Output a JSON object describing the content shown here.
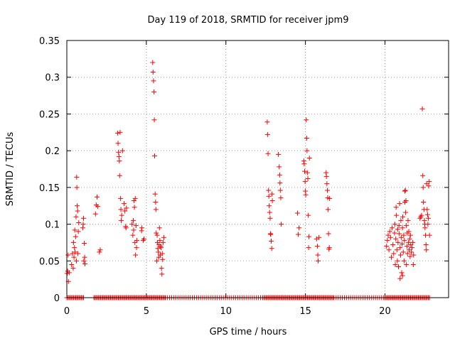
{
  "colors": {
    "series": "#ff0000"
  },
  "chart_data": {
    "type": "scatter",
    "title": "Day 119 of 2018, SRMTID for receiver jpm9",
    "xlabel": "GPS time / hours",
    "ylabel": "SRMTID / TECUs",
    "xlim": [
      0,
      24
    ],
    "ylim": [
      0,
      0.35
    ],
    "xticks": [
      0,
      5,
      10,
      15,
      20
    ],
    "xtick_labels": [
      "0",
      "5",
      "10",
      "15",
      "20"
    ],
    "yticks": [
      0,
      0.05,
      0.1,
      0.15,
      0.2,
      0.25,
      0.3,
      0.35
    ],
    "ytick_labels": [
      "0",
      "0.05",
      "0.1",
      "0.15",
      "0.2",
      "0.25",
      "0.3",
      "0.35"
    ],
    "grid": true,
    "marker": "+",
    "series": [
      {
        "name": "SRMTID",
        "points": [
          [
            0.02,
            0.033
          ],
          [
            0.05,
            0.036
          ],
          [
            0.08,
            0.058
          ],
          [
            0.1,
            0.022
          ],
          [
            0.15,
            0.034
          ],
          [
            0.3,
            0.045
          ],
          [
            0.35,
            0.06
          ],
          [
            0.4,
            0.04
          ],
          [
            0.42,
            0.075
          ],
          [
            0.45,
            0.055
          ],
          [
            0.48,
            0.068
          ],
          [
            0.5,
            0.092
          ],
          [
            0.52,
            0.062
          ],
          [
            0.55,
            0.083
          ],
          [
            0.58,
            0.11
          ],
          [
            0.6,
            0.05
          ],
          [
            0.62,
            0.164
          ],
          [
            0.63,
            0.15
          ],
          [
            0.65,
            0.125
          ],
          [
            0.68,
            0.118
          ],
          [
            0.7,
            0.06
          ],
          [
            0.72,
            0.09
          ],
          [
            0.75,
            0.102
          ],
          [
            1.0,
            0.095
          ],
          [
            1.03,
            0.1
          ],
          [
            1.05,
            0.108
          ],
          [
            1.07,
            0.05
          ],
          [
            1.1,
            0.074
          ],
          [
            1.12,
            0.055
          ],
          [
            1.14,
            0.046
          ],
          [
            1.8,
            0.114
          ],
          [
            1.85,
            0.126
          ],
          [
            1.9,
            0.137
          ],
          [
            1.95,
            0.124
          ],
          [
            2.05,
            0.062
          ],
          [
            2.1,
            0.065
          ],
          [
            3.2,
            0.224
          ],
          [
            3.22,
            0.21
          ],
          [
            3.25,
            0.198
          ],
          [
            3.28,
            0.192
          ],
          [
            3.3,
            0.186
          ],
          [
            3.32,
            0.166
          ],
          [
            3.35,
            0.225
          ],
          [
            3.38,
            0.135
          ],
          [
            3.4,
            0.12
          ],
          [
            3.42,
            0.105
          ],
          [
            3.45,
            0.112
          ],
          [
            3.5,
            0.2
          ],
          [
            3.6,
            0.128
          ],
          [
            3.65,
            0.118
          ],
          [
            3.7,
            0.097
          ],
          [
            3.72,
            0.095
          ],
          [
            3.75,
            0.122
          ],
          [
            4.1,
            0.1
          ],
          [
            4.15,
            0.085
          ],
          [
            4.18,
            0.105
          ],
          [
            4.2,
            0.092
          ],
          [
            4.22,
            0.132
          ],
          [
            4.25,
            0.123
          ],
          [
            4.28,
            0.075
          ],
          [
            4.3,
            0.135
          ],
          [
            4.32,
            0.058
          ],
          [
            4.35,
            0.098
          ],
          [
            4.38,
            0.068
          ],
          [
            4.4,
            0.078
          ],
          [
            4.7,
            0.091
          ],
          [
            4.72,
            0.095
          ],
          [
            4.8,
            0.078
          ],
          [
            4.85,
            0.08
          ],
          [
            5.4,
            0.32
          ],
          [
            5.42,
            0.307
          ],
          [
            5.45,
            0.295
          ],
          [
            5.48,
            0.28
          ],
          [
            5.5,
            0.242
          ],
          [
            5.52,
            0.193
          ],
          [
            5.55,
            0.141
          ],
          [
            5.58,
            0.13
          ],
          [
            5.6,
            0.12
          ],
          [
            5.62,
            0.088
          ],
          [
            5.65,
            0.05
          ],
          [
            5.68,
            0.085
          ],
          [
            5.7,
            0.075
          ],
          [
            5.72,
            0.067
          ],
          [
            5.75,
            0.062
          ],
          [
            5.78,
            0.055
          ],
          [
            5.8,
            0.072
          ],
          [
            5.82,
            0.095
          ],
          [
            5.85,
            0.078
          ],
          [
            5.88,
            0.058
          ],
          [
            5.9,
            0.07
          ],
          [
            5.92,
            0.068
          ],
          [
            5.95,
            0.04
          ],
          [
            5.98,
            0.032
          ],
          [
            6.0,
            0.06
          ],
          [
            6.02,
            0.052
          ],
          [
            6.05,
            0.075
          ],
          [
            6.1,
            0.082
          ],
          [
            12.6,
            0.239
          ],
          [
            12.62,
            0.222
          ],
          [
            12.65,
            0.196
          ],
          [
            12.68,
            0.146
          ],
          [
            12.7,
            0.138
          ],
          [
            12.72,
            0.125
          ],
          [
            12.75,
            0.116
          ],
          [
            12.78,
            0.108
          ],
          [
            12.8,
            0.087
          ],
          [
            12.82,
            0.086
          ],
          [
            12.85,
            0.077
          ],
          [
            12.88,
            0.067
          ],
          [
            12.9,
            0.141
          ],
          [
            12.92,
            0.132
          ],
          [
            13.3,
            0.195
          ],
          [
            13.35,
            0.178
          ],
          [
            13.38,
            0.167
          ],
          [
            13.4,
            0.156
          ],
          [
            13.42,
            0.146
          ],
          [
            13.45,
            0.136
          ],
          [
            13.48,
            0.1
          ],
          [
            14.5,
            0.115
          ],
          [
            14.55,
            0.086
          ],
          [
            14.6,
            0.095
          ],
          [
            14.9,
            0.186
          ],
          [
            14.92,
            0.182
          ],
          [
            14.95,
            0.172
          ],
          [
            14.98,
            0.158
          ],
          [
            15.0,
            0.145
          ],
          [
            15.02,
            0.14
          ],
          [
            15.05,
            0.242
          ],
          [
            15.08,
            0.217
          ],
          [
            15.1,
            0.2
          ],
          [
            15.12,
            0.17
          ],
          [
            15.15,
            0.162
          ],
          [
            15.18,
            0.112
          ],
          [
            15.2,
            0.068
          ],
          [
            15.22,
            0.083
          ],
          [
            15.25,
            0.19
          ],
          [
            15.7,
            0.08
          ],
          [
            15.75,
            0.07
          ],
          [
            15.78,
            0.058
          ],
          [
            15.8,
            0.05
          ],
          [
            15.85,
            0.082
          ],
          [
            16.3,
            0.17
          ],
          [
            16.32,
            0.165
          ],
          [
            16.35,
            0.155
          ],
          [
            16.38,
            0.146
          ],
          [
            16.4,
            0.136
          ],
          [
            16.42,
            0.12
          ],
          [
            16.45,
            0.087
          ],
          [
            16.48,
            0.066
          ],
          [
            16.5,
            0.068
          ],
          [
            16.52,
            0.135
          ],
          [
            20.1,
            0.07
          ],
          [
            20.15,
            0.078
          ],
          [
            20.2,
            0.085
          ],
          [
            20.25,
            0.065
          ],
          [
            20.3,
            0.09
          ],
          [
            20.35,
            0.082
          ],
          [
            20.4,
            0.055
          ],
          [
            20.45,
            0.095
          ],
          [
            20.5,
            0.072
          ],
          [
            20.55,
            0.06
          ],
          [
            20.6,
            0.088
          ],
          [
            20.62,
            0.1
          ],
          [
            20.65,
            0.045
          ],
          [
            20.68,
            0.08
          ],
          [
            20.7,
            0.123
          ],
          [
            20.72,
            0.112
          ],
          [
            20.75,
            0.065
          ],
          [
            20.78,
            0.05
          ],
          [
            20.8,
            0.093
          ],
          [
            20.82,
            0.075
          ],
          [
            20.85,
            0.042
          ],
          [
            20.88,
            0.098
          ],
          [
            20.9,
            0.087
          ],
          [
            20.92,
            0.128
          ],
          [
            20.95,
            0.068
          ],
          [
            20.98,
            0.058
          ],
          [
            21.0,
            0.105
          ],
          [
            21.02,
            0.082
          ],
          [
            21.05,
            0.034
          ],
          [
            21.08,
            0.073
          ],
          [
            21.1,
            0.095
          ],
          [
            21.12,
            0.11
          ],
          [
            21.15,
            0.062
          ],
          [
            21.18,
            0.085
          ],
          [
            21.2,
            0.05
          ],
          [
            21.22,
            0.078
          ],
          [
            21.25,
            0.145
          ],
          [
            21.28,
            0.146
          ],
          [
            21.3,
            0.116
          ],
          [
            21.32,
            0.132
          ],
          [
            21.35,
            0.098
          ],
          [
            21.38,
            0.07
          ],
          [
            21.4,
            0.088
          ],
          [
            21.42,
            0.06
          ],
          [
            21.45,
            0.105
          ],
          [
            21.48,
            0.075
          ],
          [
            21.5,
            0.09
          ],
          [
            21.52,
            0.065
          ],
          [
            21.55,
            0.08
          ],
          [
            21.58,
            0.056
          ],
          [
            21.6,
            0.085
          ],
          [
            21.62,
            0.072
          ],
          [
            21.65,
            0.062
          ],
          [
            21.7,
            0.068
          ],
          [
            21.75,
            0.075
          ],
          [
            21.78,
            0.045
          ],
          [
            21.8,
            0.058
          ],
          [
            21.1,
            0.03
          ],
          [
            21.25,
            0.13
          ],
          [
            21.35,
            0.045
          ],
          [
            20.95,
            0.026
          ],
          [
            22.2,
            0.108
          ],
          [
            22.25,
            0.11
          ],
          [
            22.3,
            0.112
          ],
          [
            22.35,
            0.257
          ],
          [
            22.38,
            0.166
          ],
          [
            22.4,
            0.15
          ],
          [
            22.42,
            0.13
          ],
          [
            22.45,
            0.12
          ],
          [
            22.48,
            0.105
          ],
          [
            22.5,
            0.1
          ],
          [
            22.52,
            0.095
          ],
          [
            22.55,
            0.085
          ],
          [
            22.58,
            0.072
          ],
          [
            22.6,
            0.065
          ],
          [
            22.62,
            0.155
          ],
          [
            22.65,
            0.12
          ],
          [
            22.68,
            0.113
          ],
          [
            22.7,
            0.1
          ],
          [
            22.72,
            0.108
          ],
          [
            22.75,
            0.152
          ],
          [
            22.78,
            0.158
          ],
          [
            22.8,
            0.085
          ]
        ],
        "zero_runs": [
          {
            "start": 0.0,
            "end": 1.1,
            "step": 0.07
          },
          {
            "start": 1.7,
            "end": 6.2,
            "step": 0.07
          },
          {
            "start": 6.2,
            "end": 12.4,
            "step": 0.13
          },
          {
            "start": 12.4,
            "end": 16.8,
            "step": 0.07
          },
          {
            "start": 16.8,
            "end": 20.0,
            "step": 0.13
          },
          {
            "start": 20.0,
            "end": 22.8,
            "step": 0.07
          }
        ]
      }
    ]
  }
}
